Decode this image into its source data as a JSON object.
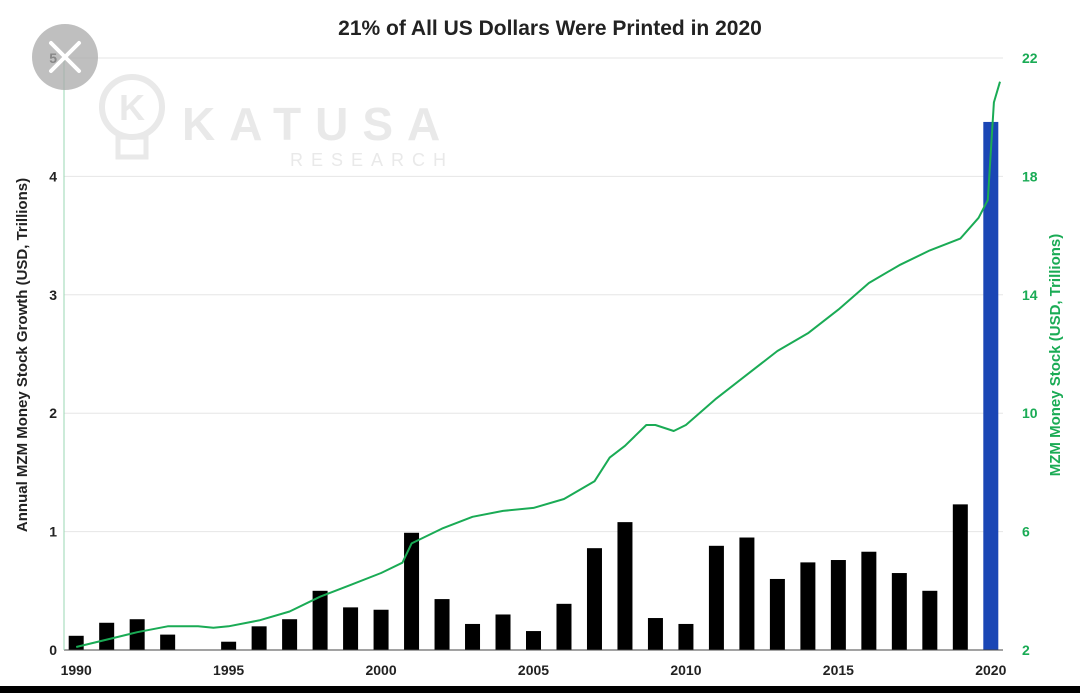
{
  "colors": {
    "bar": "#000000",
    "bar_highlight": "#1a46b5",
    "line": "#1aab55",
    "grid": "#e6e6e6",
    "axis_text": "#222222",
    "right_axis_text": "#1aab55",
    "watermark": "#e9e9e9"
  },
  "watermark": {
    "brand": "KATUSA",
    "sub": "RESEARCH",
    "logo_letter": "K"
  },
  "overlay": {
    "close_icon": "close-icon"
  },
  "chart_data": {
    "type": "bar",
    "title": "21% of All US Dollars Were Printed in 2020",
    "ylabel": "Annual MZM Money Stock Growth (USD, Trillions)",
    "y2label": "MZM Money Stock (USD, Trillions)",
    "xlabel": "",
    "ylim": [
      0,
      5
    ],
    "y2lim": [
      2,
      22
    ],
    "xlim": [
      1989.6,
      2020.4
    ],
    "yticks": [
      "0",
      "1",
      "2",
      "3",
      "4",
      "5"
    ],
    "y2ticks": [
      "2",
      "6",
      "10",
      "14",
      "18",
      "22"
    ],
    "xticks": [
      "1990",
      "1995",
      "2000",
      "2005",
      "2010",
      "2015",
      "2020"
    ],
    "grid": true,
    "categories": [
      1990,
      1991,
      1992,
      1993,
      1994,
      1995,
      1996,
      1997,
      1998,
      1999,
      2000,
      2001,
      2002,
      2003,
      2004,
      2005,
      2006,
      2007,
      2008,
      2009,
      2010,
      2011,
      2012,
      2013,
      2014,
      2015,
      2016,
      2017,
      2018,
      2019,
      2020
    ],
    "series": [
      {
        "type": "bar",
        "values": [
          0.12,
          0.23,
          0.26,
          0.13,
          0.0,
          0.07,
          0.2,
          0.26,
          0.5,
          0.36,
          0.34,
          0.99,
          0.43,
          0.22,
          0.3,
          0.16,
          0.39,
          0.86,
          1.08,
          0.27,
          0.22,
          0.88,
          0.95,
          0.6,
          0.74,
          0.76,
          0.83,
          0.65,
          0.5,
          1.23,
          4.46
        ],
        "highlight_index": 30
      },
      {
        "type": "line",
        "axis": "right",
        "x": [
          1990,
          1991,
          1992,
          1993,
          1994,
          1994.5,
          1995,
          1996,
          1997,
          1998,
          1999,
          2000,
          2000.7,
          2001,
          2002,
          2003,
          2004,
          2005,
          2006,
          2007,
          2007.5,
          2008,
          2008.7,
          2009,
          2009.6,
          2010,
          2011,
          2012,
          2013,
          2014,
          2015,
          2016,
          2017,
          2018,
          2019,
          2019.6,
          2019.9,
          2020.1,
          2020.3
        ],
        "values": [
          2.1,
          2.35,
          2.6,
          2.8,
          2.8,
          2.75,
          2.8,
          3.0,
          3.3,
          3.8,
          4.2,
          4.6,
          4.95,
          5.6,
          6.1,
          6.5,
          6.7,
          6.8,
          7.1,
          7.7,
          8.5,
          8.9,
          9.6,
          9.6,
          9.4,
          9.6,
          10.5,
          11.3,
          12.1,
          12.7,
          13.5,
          14.4,
          15.0,
          15.5,
          15.9,
          16.6,
          17.2,
          20.5,
          21.2
        ]
      }
    ]
  }
}
